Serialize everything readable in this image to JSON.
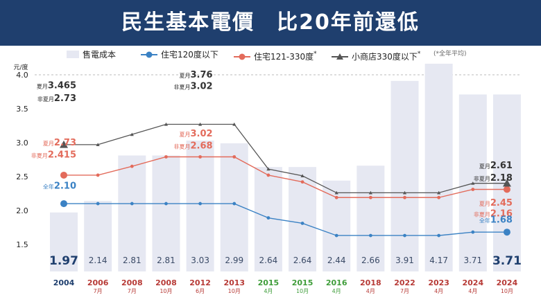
{
  "title": "民生基本電價　比20年前還低",
  "legend": {
    "cost": "售電成本",
    "res120": "住宅120度以下",
    "res330": "住宅121-330度",
    "res330_mark": "*",
    "shop": "小商店330度以下",
    "shop_mark": "*",
    "note": "(*全年平均)"
  },
  "colors": {
    "bar": "#e6e8f2",
    "blue": "#3b82c4",
    "red": "#e36b5b",
    "gray": "#555555",
    "title_bg": "#1f3f6e",
    "year_blue": "#1f3f6e",
    "year_red": "#b73a36",
    "year_green": "#3f9d3a"
  },
  "chart_data": {
    "type": "bar",
    "y_unit": "元/度",
    "ylim": [
      1.1,
      4.0
    ],
    "yticks": [
      "1.5",
      "2.0",
      "2.5",
      "3.0",
      "3.5",
      "4.0"
    ],
    "years": [
      "2004",
      "2006",
      "2008",
      "2008",
      "2012",
      "2013",
      "2015",
      "2015",
      "2016",
      "2018",
      "2022",
      "2023",
      "2024",
      "2024"
    ],
    "months": [
      "",
      "7月",
      "7月",
      "10月",
      "6月",
      "10月",
      "4月",
      "10月",
      "4月",
      "4月",
      "7月",
      "4月",
      "4月",
      "10月"
    ],
    "year_colors": [
      "blue",
      "red",
      "red",
      "red",
      "red",
      "red",
      "green",
      "green",
      "green",
      "red",
      "red",
      "red",
      "red",
      "red"
    ],
    "series": [
      {
        "name": "售電成本",
        "type": "bar",
        "values": [
          1.97,
          2.14,
          2.81,
          2.81,
          3.03,
          2.99,
          2.64,
          2.64,
          2.44,
          2.66,
          3.91,
          4.17,
          3.71,
          3.71
        ],
        "labels": [
          "1.97",
          "2.14",
          "2.81",
          "2.81",
          "3.03",
          "2.99",
          "2.64",
          "2.64",
          "2.44",
          "2.66",
          "3.91",
          "4.17",
          "3.71",
          "3.71"
        ]
      },
      {
        "name": "住宅120度以下",
        "type": "line",
        "values": [
          2.1,
          2.1,
          2.1,
          2.1,
          2.1,
          2.1,
          1.89,
          1.81,
          1.63,
          1.63,
          1.63,
          1.63,
          1.68,
          1.68
        ]
      },
      {
        "name": "住宅121-330度",
        "type": "line",
        "values": [
          2.52,
          2.52,
          2.65,
          2.79,
          2.79,
          2.79,
          2.52,
          2.42,
          2.19,
          2.19,
          2.19,
          2.19,
          2.31,
          2.31
        ]
      },
      {
        "name": "小商店330度以下",
        "type": "line",
        "values": [
          2.97,
          2.97,
          3.12,
          3.27,
          3.27,
          3.27,
          2.61,
          2.51,
          2.26,
          2.26,
          2.26,
          2.26,
          2.4,
          2.4
        ]
      }
    ],
    "annotations": [
      {
        "prefix": "夏月",
        "value": "3.465",
        "color": "#333333",
        "idx": 0,
        "at": 3.8
      },
      {
        "prefix": "非夏月",
        "value": "2.73",
        "color": "#333333",
        "idx": 0,
        "at": 3.61
      },
      {
        "prefix": "夏月",
        "value": "3.76",
        "color": "#333333",
        "idx": 4,
        "at": 3.96
      },
      {
        "prefix": "非夏月",
        "value": "3.02",
        "color": "#333333",
        "idx": 4,
        "at": 3.79
      },
      {
        "prefix": "夏月",
        "value": "2.73",
        "color": "#e36b5b",
        "idx": 0,
        "at": 2.96
      },
      {
        "prefix": "非夏月",
        "value": "2.415",
        "color": "#e36b5b",
        "idx": 0,
        "at": 2.78
      },
      {
        "prefix": "夏月",
        "value": "3.02",
        "color": "#e36b5b",
        "idx": 4,
        "at": 3.09
      },
      {
        "prefix": "非夏月",
        "value": "2.68",
        "color": "#e36b5b",
        "idx": 4,
        "at": 2.91
      },
      {
        "prefix": "全年",
        "value": "2.10",
        "color": "#3b82c4",
        "idx": 0,
        "at": 2.32
      },
      {
        "prefix": "夏月",
        "value": "2.61",
        "color": "#333333",
        "idx": 13,
        "at": 2.62
      },
      {
        "prefix": "非夏月",
        "value": "2.18",
        "color": "#333333",
        "idx": 13,
        "at": 2.44
      },
      {
        "prefix": "夏月",
        "value": "2.45",
        "color": "#e36b5b",
        "idx": 13,
        "at": 2.07
      },
      {
        "prefix": "非夏月",
        "value": "2.16",
        "color": "#e36b5b",
        "idx": 13,
        "at": 1.91
      },
      {
        "prefix": "全年",
        "value": "1.68",
        "color": "#3b82c4",
        "idx": 13,
        "at": 1.82
      }
    ]
  }
}
